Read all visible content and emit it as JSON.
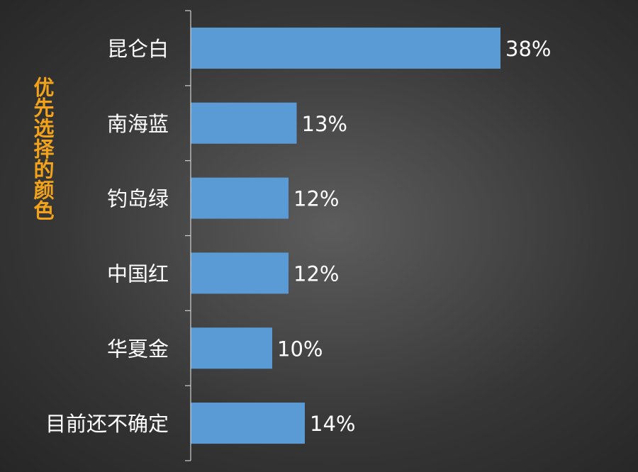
{
  "chart_data": {
    "type": "bar",
    "orientation": "horizontal",
    "title": "",
    "xlabel": "",
    "ylabel": "优先选择的颜色",
    "categories": [
      "昆仑白",
      "南海蓝",
      "钓岛绿",
      "中国红",
      "华夏金",
      "目前还不确定"
    ],
    "values": [
      38,
      13,
      12,
      12,
      10,
      14
    ],
    "value_labels": [
      "38%",
      "13%",
      "12%",
      "12%",
      "10%",
      "14%"
    ],
    "unit": "%",
    "xlim": [
      0,
      40
    ],
    "grid": false,
    "legend": "none",
    "colors": {
      "bar": "#5b9bd5",
      "axis": "#d0d0d0",
      "category_text": "#ffffff",
      "value_text": "#ffffff",
      "ylabel": "#f2a31a"
    }
  }
}
